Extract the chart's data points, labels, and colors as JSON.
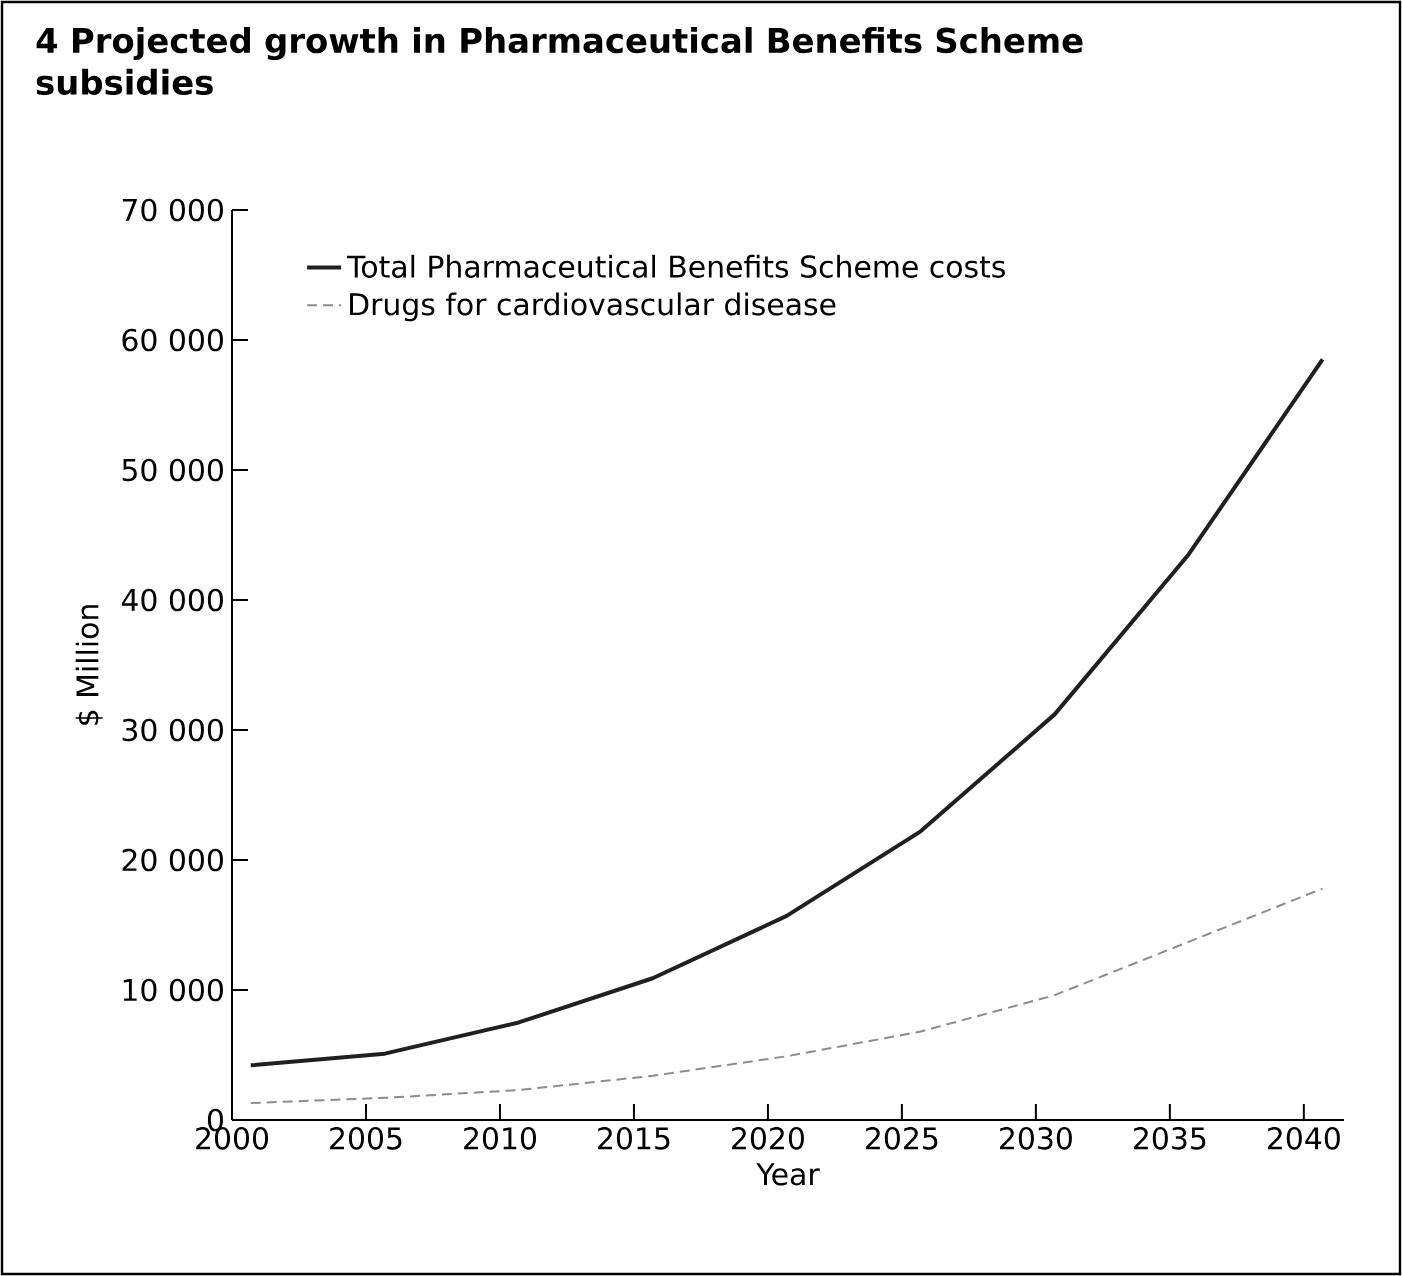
{
  "chart_data": {
    "type": "line",
    "title": "4 Projected growth in Pharmaceutical Benefits Scheme subsidies",
    "xlabel": "Year",
    "ylabel": "$ Million",
    "x": [
      2000.7,
      2005.7,
      2010.7,
      2015.7,
      2020.7,
      2025.7,
      2030.7,
      2035.7,
      2040.7
    ],
    "series": [
      {
        "name": "Total Pharmaceutical Benefits Scheme costs",
        "color": "#231f20",
        "line_style": "solid",
        "values": [
          4200,
          5100,
          7500,
          10900,
          15700,
          22200,
          31200,
          43500,
          58500
        ]
      },
      {
        "name": "Drugs for cardiovascular disease",
        "color": "#8c8c8c",
        "line_style": "dashed",
        "values": [
          1300,
          1700,
          2300,
          3400,
          4900,
          6800,
          9600,
          13700,
          17800
        ]
      }
    ],
    "xlim": [
      2000,
      2041.5
    ],
    "ylim": [
      0,
      70000
    ],
    "xticks": [
      2000,
      2005,
      2010,
      2015,
      2020,
      2025,
      2030,
      2035,
      2040
    ],
    "yticks": [
      {
        "value": 0,
        "label": "0"
      },
      {
        "value": 10000,
        "label": "10 000"
      },
      {
        "value": 20000,
        "label": "20 000"
      },
      {
        "value": 30000,
        "label": "30 000"
      },
      {
        "value": 40000,
        "label": "40 000"
      },
      {
        "value": 50000,
        "label": "50 000"
      },
      {
        "value": 60000,
        "label": "60 000"
      },
      {
        "value": 70000,
        "label": "70 000"
      }
    ],
    "grid": false,
    "legend": "top left",
    "marker": "none"
  }
}
